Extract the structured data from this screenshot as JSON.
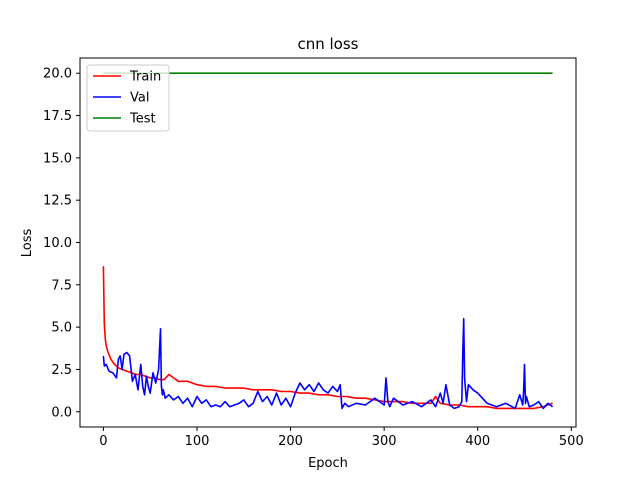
{
  "chart_data": {
    "type": "line",
    "title": "cnn loss",
    "xlabel": "Epoch",
    "ylabel": "Loss",
    "xlim": [
      -25,
      505
    ],
    "ylim": [
      -0.9,
      20.9
    ],
    "xticks": [
      0,
      100,
      200,
      300,
      400,
      500
    ],
    "yticks": [
      0.0,
      2.5,
      5.0,
      7.5,
      10.0,
      12.5,
      15.0,
      17.5,
      20.0
    ],
    "legend_position": "top-left",
    "grid": false,
    "series": [
      {
        "name": "Train",
        "color": "#ff0000",
        "x": [
          0,
          1,
          2,
          3,
          5,
          8,
          12,
          16,
          20,
          25,
          30,
          35,
          40,
          45,
          50,
          55,
          60,
          65,
          70,
          75,
          80,
          90,
          100,
          110,
          120,
          130,
          140,
          150,
          160,
          170,
          180,
          190,
          200,
          210,
          220,
          230,
          240,
          250,
          260,
          270,
          280,
          290,
          300,
          310,
          320,
          330,
          340,
          350,
          355,
          360,
          370,
          380,
          390,
          400,
          410,
          420,
          430,
          440,
          450,
          460,
          470,
          480
        ],
        "y": [
          8.6,
          5.2,
          4.3,
          3.9,
          3.5,
          3.1,
          2.8,
          2.6,
          2.5,
          2.4,
          2.3,
          2.2,
          2.2,
          2.1,
          2.0,
          2.0,
          1.9,
          1.9,
          2.2,
          2.0,
          1.8,
          1.8,
          1.6,
          1.5,
          1.5,
          1.4,
          1.4,
          1.4,
          1.3,
          1.3,
          1.3,
          1.2,
          1.2,
          1.1,
          1.1,
          1.0,
          1.0,
          0.9,
          0.9,
          0.8,
          0.8,
          0.7,
          0.6,
          0.6,
          0.6,
          0.5,
          0.5,
          0.5,
          0.9,
          0.5,
          0.4,
          0.4,
          0.3,
          0.3,
          0.3,
          0.2,
          0.2,
          0.2,
          0.2,
          0.2,
          0.3,
          0.5
        ]
      },
      {
        "name": "Val",
        "color": "#0000ff",
        "x": [
          0,
          1,
          3,
          6,
          10,
          14,
          16,
          18,
          20,
          22,
          25,
          28,
          31,
          34,
          37,
          40,
          42,
          44,
          46,
          48,
          50,
          53,
          56,
          59,
          61,
          62,
          63,
          64,
          66,
          70,
          75,
          80,
          85,
          90,
          95,
          100,
          105,
          110,
          115,
          120,
          125,
          130,
          135,
          140,
          145,
          150,
          155,
          160,
          165,
          170,
          175,
          180,
          185,
          190,
          195,
          200,
          205,
          210,
          215,
          220,
          225,
          230,
          235,
          240,
          245,
          250,
          253,
          255,
          258,
          262,
          270,
          280,
          290,
          300,
          302,
          304,
          306,
          310,
          320,
          330,
          340,
          350,
          355,
          360,
          363,
          366,
          370,
          375,
          380,
          383,
          384,
          385,
          386,
          388,
          390,
          395,
          400,
          410,
          420,
          430,
          440,
          445,
          448,
          449,
          450,
          451,
          452,
          455,
          460,
          465,
          470,
          475,
          480
        ],
        "y": [
          3.3,
          2.7,
          2.8,
          2.4,
          2.3,
          2.0,
          3.1,
          3.3,
          2.5,
          3.4,
          3.5,
          3.3,
          1.8,
          2.2,
          1.3,
          2.8,
          1.5,
          1.0,
          2.1,
          1.5,
          1.1,
          2.3,
          1.7,
          2.5,
          4.9,
          1.5,
          1.0,
          1.3,
          0.8,
          1.0,
          0.7,
          0.9,
          0.5,
          0.8,
          0.3,
          0.9,
          0.5,
          0.7,
          0.3,
          0.4,
          0.3,
          0.6,
          0.3,
          0.4,
          0.5,
          0.7,
          0.3,
          0.5,
          1.2,
          0.6,
          0.9,
          0.4,
          1.1,
          0.4,
          0.8,
          0.3,
          1.1,
          1.7,
          1.3,
          1.6,
          1.2,
          1.7,
          1.3,
          1.1,
          1.5,
          1.2,
          1.6,
          0.2,
          0.5,
          0.3,
          0.5,
          0.4,
          0.8,
          0.4,
          2.0,
          0.6,
          0.3,
          0.8,
          0.4,
          0.6,
          0.3,
          0.7,
          0.3,
          1.1,
          0.5,
          1.6,
          0.4,
          0.2,
          0.3,
          0.6,
          3.5,
          5.5,
          2.0,
          0.6,
          1.6,
          1.3,
          1.1,
          0.5,
          0.3,
          0.5,
          0.2,
          1.0,
          0.4,
          1.2,
          2.8,
          0.5,
          0.9,
          0.3,
          0.4,
          0.6,
          0.2,
          0.5,
          0.3
        ]
      },
      {
        "name": "Test",
        "color": "#008000",
        "x": [
          0,
          480
        ],
        "y": [
          20.0,
          20.0
        ]
      }
    ]
  }
}
